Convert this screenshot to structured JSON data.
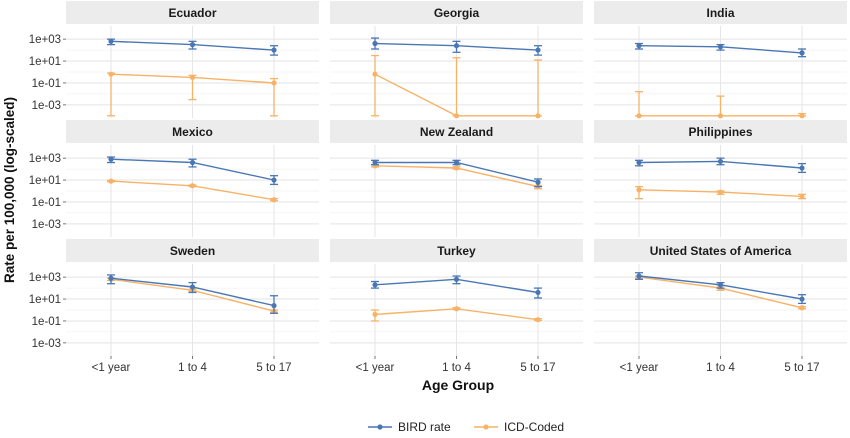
{
  "chart_data": {
    "type": "line",
    "y_scale": "log10",
    "y_title": "Rate per 100,000 (log-scaled)",
    "x_title": "Age Group",
    "categories": [
      "<1 year",
      "1 to 4",
      "5 to 17"
    ],
    "y_ticks": [
      {
        "value": 0.001,
        "label": "1e-03"
      },
      {
        "value": 0.1,
        "label": "1e-01"
      },
      {
        "value": 10,
        "label": "1e+01"
      },
      {
        "value": 1000,
        "label": "1e+03"
      }
    ],
    "ylim": [
      6.31e-05,
      15850
    ],
    "grid": true,
    "legend_position": "bottom",
    "series_styles": [
      {
        "name": "BIRD rate",
        "color": "#4a77b4"
      },
      {
        "name": "ICD-Coded",
        "color": "#f7b267"
      }
    ],
    "panels": [
      {
        "title": "Ecuador",
        "series": [
          {
            "name": "BIRD rate",
            "values": [
              631,
              316,
              100
            ],
            "lower": [
              316,
              126,
              35
            ],
            "upper": [
              1000,
              631,
              251
            ]
          },
          {
            "name": "ICD-Coded",
            "values": [
              0.63,
              0.32,
              0.1
            ],
            "lower": null,
            "upper": [
              0.79,
              0.5,
              0.25
            ],
            "lower_bound": [
              0.0001,
              0.003,
              0.0001
            ]
          }
        ]
      },
      {
        "title": "Georgia",
        "series": [
          {
            "name": "BIRD rate",
            "values": [
              398,
              251,
              100
            ],
            "lower": [
              126,
              63,
              35
            ],
            "upper": [
              1259,
              631,
              251
            ]
          },
          {
            "name": "ICD-Coded",
            "values": [
              0.63,
              0.0001,
              0.0001
            ],
            "lower": [
              0.0001,
              0.0001,
              0.0001
            ],
            "upper": [
              31.6,
              20,
              12.6
            ]
          }
        ]
      },
      {
        "title": "India",
        "series": [
          {
            "name": "BIRD rate",
            "values": [
              251,
              200,
              56
            ],
            "lower": [
              126,
              100,
              25
            ],
            "upper": [
              398,
              316,
              126
            ]
          },
          {
            "name": "ICD-Coded",
            "values": [
              0.0001,
              0.0001,
              0.0001
            ],
            "lower": [
              0.0001,
              0.0001,
              0.0001
            ],
            "upper": [
              0.016,
              0.0063,
              0.00016
            ]
          }
        ]
      },
      {
        "title": "Mexico",
        "series": [
          {
            "name": "BIRD rate",
            "values": [
              794,
              398,
              10
            ],
            "lower": [
              398,
              158,
              4
            ],
            "upper": [
              1259,
              794,
              25
            ]
          },
          {
            "name": "ICD-Coded",
            "values": [
              8,
              3,
              0.16
            ],
            "lower": [
              7,
              2.6,
              0.13
            ],
            "upper": [
              9,
              3.5,
              0.2
            ]
          }
        ]
      },
      {
        "title": "New Zealand",
        "series": [
          {
            "name": "BIRD rate",
            "values": [
              398,
              398,
              6.3
            ],
            "lower": [
              251,
              251,
              2.5
            ],
            "upper": [
              631,
              631,
              12.6
            ]
          },
          {
            "name": "ICD-Coded",
            "values": [
              200,
              126,
              2.5
            ],
            "lower": [
              158,
              100,
              1.6
            ],
            "upper": [
              251,
              158,
              3.2
            ]
          }
        ]
      },
      {
        "title": "Philippines",
        "series": [
          {
            "name": "BIRD rate",
            "values": [
              398,
              501,
              126
            ],
            "lower": [
              200,
              251,
              50
            ],
            "upper": [
              631,
              1000,
              316
            ]
          },
          {
            "name": "ICD-Coded",
            "values": [
              1.3,
              0.79,
              0.32
            ],
            "lower": [
              0.2,
              0.5,
              0.2
            ],
            "upper": [
              2.5,
              1.0,
              0.5
            ]
          }
        ]
      },
      {
        "title": "Sweden",
        "series": [
          {
            "name": "BIRD rate",
            "values": [
              794,
              126,
              2.5
            ],
            "lower": [
              251,
              40,
              0.5
            ],
            "upper": [
              1585,
              316,
              20
            ]
          },
          {
            "name": "ICD-Coded",
            "values": [
              631,
              63,
              0.79
            ],
            "lower": [
              501,
              50,
              0.63
            ],
            "upper": [
              794,
              79,
              1.0
            ]
          }
        ]
      },
      {
        "title": "Turkey",
        "series": [
          {
            "name": "BIRD rate",
            "values": [
              200,
              631,
              40
            ],
            "lower": [
              100,
              251,
              12.6
            ],
            "upper": [
              398,
              1259,
              100
            ]
          },
          {
            "name": "ICD-Coded",
            "values": [
              0.4,
              1.3,
              0.13
            ],
            "lower": [
              0.1,
              1.1,
              0.11
            ],
            "upper": [
              1.0,
              1.6,
              0.16
            ]
          }
        ]
      },
      {
        "title": "United States of America",
        "series": [
          {
            "name": "BIRD rate",
            "values": [
              1259,
              200,
              10
            ],
            "lower": [
              631,
              100,
              4
            ],
            "upper": [
              2512,
              316,
              25
            ]
          },
          {
            "name": "ICD-Coded",
            "values": [
              1000,
              100,
              1.6
            ],
            "lower": [
              794,
              63,
              1.3
            ],
            "upper": [
              1259,
              158,
              2.0
            ]
          }
        ]
      }
    ]
  }
}
